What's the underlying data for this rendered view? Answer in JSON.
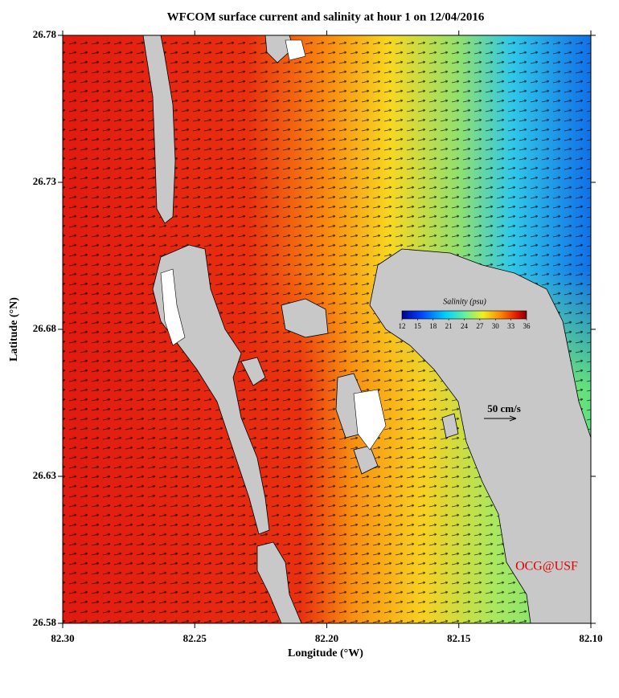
{
  "chart_data": {
    "type": "map",
    "title": "WFCOM surface current and salinity at hour 1 on 12/04/2016",
    "x_label": "Longitude (°W)",
    "y_label": "Latitude (°N)",
    "xlim": [
      82.3,
      82.1
    ],
    "xticks": [
      {
        "value": 82.3,
        "label": "82.30"
      },
      {
        "value": 82.25,
        "label": "82.25"
      },
      {
        "value": 82.2,
        "label": "82.20"
      },
      {
        "value": 82.15,
        "label": "82.15"
      },
      {
        "value": 82.1,
        "label": "82.10"
      }
    ],
    "ylim": [
      26.58,
      26.78
    ],
    "yticks": [
      26.58,
      26.63,
      26.68,
      26.73,
      26.78
    ],
    "colorbar": {
      "label": "Salinity (psu)",
      "lim": [
        12,
        36
      ],
      "ticks": [
        12,
        15,
        18,
        21,
        24,
        27,
        30,
        33,
        36
      ]
    },
    "scale_label": "50 cm/s",
    "credit": "OCG@USF"
  }
}
